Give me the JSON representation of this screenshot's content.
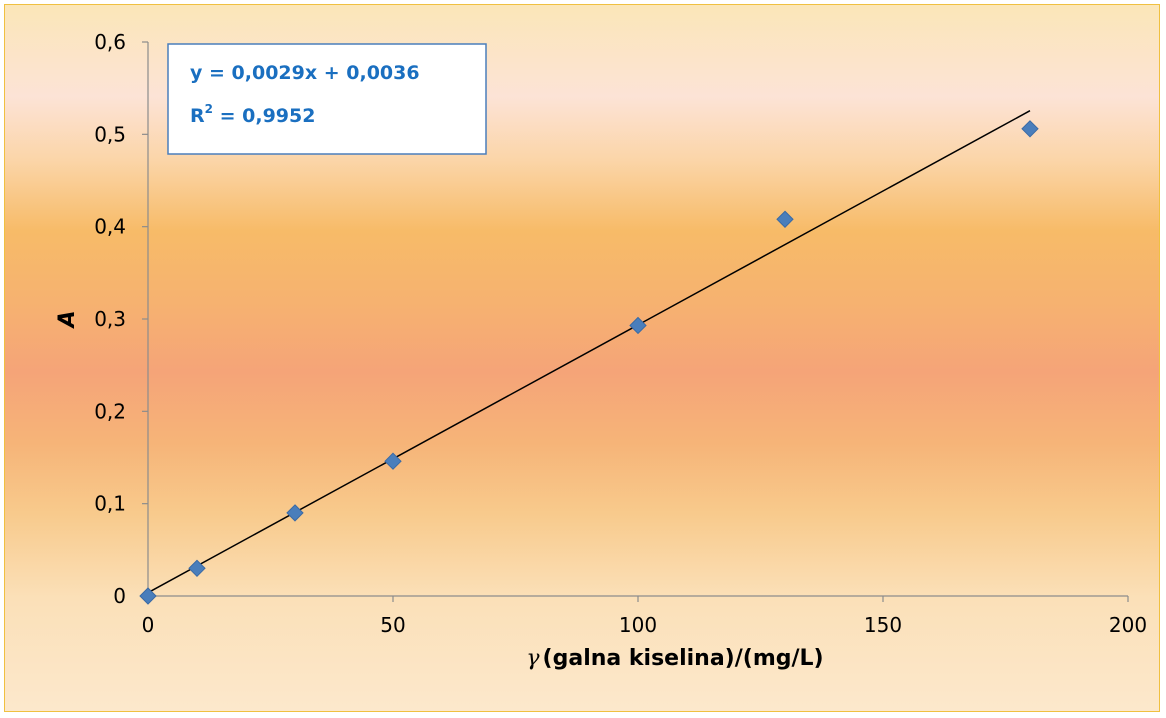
{
  "chart_data": {
    "type": "scatter",
    "x": [
      0,
      10,
      30,
      50,
      100,
      130,
      180
    ],
    "y": [
      0,
      0.03,
      0.09,
      0.146,
      0.293,
      0.408,
      0.506
    ],
    "xlabel_symbol": "γ",
    "xlabel": "(galna kiselina)/(mg/L)",
    "ylabel": "A",
    "xlim": [
      0,
      200
    ],
    "ylim": [
      0,
      0.6
    ],
    "xticks": [
      "0",
      "50",
      "100",
      "150",
      "200"
    ],
    "yticks": [
      "0",
      "0,1",
      "0,2",
      "0,3",
      "0,4",
      "0,5",
      "0,6"
    ],
    "trendline": {
      "slope": 0.0029,
      "intercept": 0.0036,
      "x_range": [
        0,
        180
      ]
    },
    "equation": "y = 0,0029x + 0,0036",
    "r2_label": "R",
    "r2_superscript": "2",
    "r2_value": " = 0,9952",
    "grid": false,
    "marker_color": "#4a7ebb",
    "equation_color": "#1a6fc0"
  }
}
